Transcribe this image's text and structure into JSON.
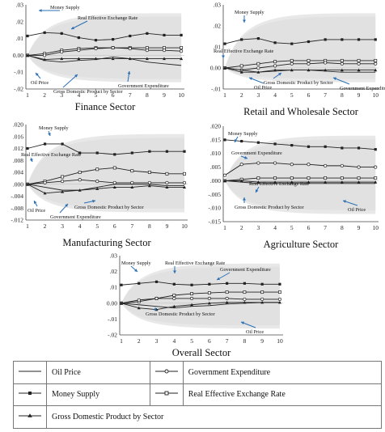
{
  "panels": [
    {
      "key": "finance",
      "title": "Finance Sector",
      "ytick_labels": [
        ".03",
        ".02",
        ".01",
        "0.00",
        "-.01",
        "-.02"
      ],
      "annotations": [
        "Money Supply",
        "Real Effective Exchange Rate",
        "Oil Price",
        "Gross Domestic Product by Sector",
        "Government Expenditure"
      ]
    },
    {
      "key": "retail",
      "title": "Retail and Wholesale Sector",
      "ytick_labels": [
        ".03",
        ".02",
        ".01",
        "0.00",
        "-.01"
      ],
      "annotations": [
        "Money Supply",
        "Real Effective Exchange Rate",
        "Oil Price",
        "Gross Domestic Product by Sector",
        "Government Expenditure"
      ]
    },
    {
      "key": "manufacturing",
      "title": "Manufacturing Sector",
      "ytick_labels": [
        ".020",
        ".016",
        ".012",
        ".008",
        ".004",
        ".000",
        "-.004",
        "-.008",
        "-.012"
      ],
      "annotations": [
        "Money Supply",
        "Real Effective Exchange Rate",
        "Oil Price",
        "Government Expenditure",
        "Gross Domestic Product by Sector"
      ]
    },
    {
      "key": "agriculture",
      "title": "Agriculture Sector",
      "ytick_labels": [
        ".020",
        ".015",
        ".010",
        ".005",
        ".000",
        "-.005",
        "-.010",
        "-.015"
      ],
      "annotations": [
        "Money Supply",
        "Government Expenditure",
        "Real Effective Exchange Rate",
        "Gross Domestic Product by Sector",
        "Oil Price"
      ]
    },
    {
      "key": "overall",
      "title": "Overall Sector",
      "ytick_labels": [
        ".03",
        ".02",
        ".01",
        "0.00",
        "-.01",
        "-.02"
      ],
      "annotations": [
        "Money Supply",
        "Real Effective Exchange Rate",
        "Government Expenditure",
        "Gross Domestic Product by Sector",
        "Oil Price"
      ]
    }
  ],
  "legend": {
    "oil_price": "Oil Price",
    "government_expenditure": "Government Expenditure",
    "money_supply": "Money Supply",
    "real_effective_exchange_rate": "Real Effective Exchange Rate",
    "gdp_by_sector": "Gross Domestic Product by Sector"
  },
  "colors": {
    "line": "#222222",
    "band": "#d9d9d9",
    "arrow": "#2a6fb5"
  },
  "chart_data": [
    {
      "type": "line",
      "title": "Finance Sector",
      "x": [
        1,
        2,
        3,
        4,
        5,
        6,
        7,
        8,
        9,
        10
      ],
      "ylim": [
        -0.02,
        0.03
      ],
      "series": [
        {
          "name": "Money Supply",
          "values": [
            0.0115,
            0.0135,
            0.013,
            0.0105,
            0.009,
            0.0095,
            0.0115,
            0.013,
            0.012,
            0.012
          ]
        },
        {
          "name": "Real Effective Exchange Rate",
          "values": [
            0.0,
            0.001,
            0.003,
            0.004,
            0.0045,
            0.0045,
            0.0045,
            0.0045,
            0.0045,
            0.0045
          ]
        },
        {
          "name": "Government Expenditure",
          "values": [
            0.0,
            0.0,
            0.002,
            0.003,
            0.004,
            0.0045,
            0.004,
            0.003,
            0.003,
            0.0025
          ]
        },
        {
          "name": "Gross Domestic Product by Sector",
          "values": [
            0.0,
            -0.0025,
            -0.002,
            -0.002,
            -0.002,
            -0.002,
            -0.002,
            -0.002,
            -0.002,
            -0.002
          ]
        },
        {
          "name": "Oil Price",
          "values": [
            0.0,
            -0.003,
            -0.004,
            -0.003,
            -0.0025,
            -0.001,
            -0.002,
            -0.004,
            -0.005,
            -0.006
          ]
        }
      ]
    },
    {
      "type": "line",
      "title": "Retail and Wholesale Sector",
      "x": [
        1,
        2,
        3,
        4,
        5,
        6,
        7,
        8,
        9,
        10
      ],
      "ylim": [
        -0.01,
        0.03
      ],
      "series": [
        {
          "name": "Money Supply",
          "values": [
            0.0115,
            0.0135,
            0.014,
            0.012,
            0.0115,
            0.0125,
            0.0135,
            0.0135,
            0.0135,
            0.0135
          ]
        },
        {
          "name": "Real Effective Exchange Rate",
          "values": [
            0.0,
            0.001,
            0.002,
            0.003,
            0.0035,
            0.0035,
            0.0035,
            0.0035,
            0.0035,
            0.0035
          ]
        },
        {
          "name": "Government Expenditure",
          "values": [
            0.0,
            -0.001,
            0.0,
            0.001,
            0.002,
            0.002,
            0.0025,
            0.002,
            0.002,
            0.002
          ]
        },
        {
          "name": "Gross Domestic Product by Sector",
          "values": [
            0.0,
            -0.002,
            -0.002,
            -0.001,
            -0.001,
            -0.001,
            -0.001,
            -0.001,
            -0.001,
            -0.001
          ]
        },
        {
          "name": "Oil Price",
          "values": [
            0.0,
            -0.001,
            -0.002,
            -0.0015,
            -0.001,
            -0.001,
            -0.0015,
            -0.002,
            -0.002,
            -0.002
          ]
        }
      ]
    },
    {
      "type": "line",
      "title": "Manufacturing Sector",
      "x": [
        1,
        2,
        3,
        4,
        5,
        6,
        7,
        8,
        9,
        10
      ],
      "ylim": [
        -0.012,
        0.02
      ],
      "series": [
        {
          "name": "Money Supply",
          "values": [
            0.012,
            0.0135,
            0.0135,
            0.0105,
            0.0105,
            0.01,
            0.0105,
            0.011,
            0.011,
            0.011
          ]
        },
        {
          "name": "Real Effective Exchange Rate",
          "values": [
            0.0,
            0.001,
            0.0025,
            0.004,
            0.005,
            0.0055,
            0.0045,
            0.004,
            0.0035,
            0.0035
          ]
        },
        {
          "name": "Government Expenditure",
          "values": [
            0.0,
            0.0005,
            0.001,
            0.0015,
            0.001,
            0.0005,
            0.0005,
            0.0005,
            0.0005,
            0.0005
          ]
        },
        {
          "name": "Gross Domestic Product by Sector",
          "values": [
            0.0,
            -0.003,
            -0.0025,
            -0.002,
            -0.0015,
            -0.001,
            -0.001,
            -0.0005,
            -0.001,
            -0.001
          ]
        },
        {
          "name": "Oil Price",
          "values": [
            0.0,
            -0.001,
            -0.002,
            -0.002,
            -0.001,
            0.0,
            0.0,
            0.0,
            -0.0005,
            -0.0005
          ]
        }
      ]
    },
    {
      "type": "line",
      "title": "Agriculture Sector",
      "x": [
        1,
        2,
        3,
        4,
        5,
        6,
        7,
        8,
        9,
        10
      ],
      "ylim": [
        -0.015,
        0.02
      ],
      "series": [
        {
          "name": "Money Supply",
          "values": [
            0.015,
            0.0145,
            0.014,
            0.0135,
            0.013,
            0.0125,
            0.0125,
            0.012,
            0.012,
            0.0115
          ]
        },
        {
          "name": "Government Expenditure",
          "values": [
            0.002,
            0.006,
            0.0065,
            0.0065,
            0.006,
            0.006,
            0.0055,
            0.0055,
            0.005,
            0.005
          ]
        },
        {
          "name": "Real Effective Exchange Rate",
          "values": [
            0.0,
            0.0005,
            0.001,
            0.001,
            0.001,
            0.001,
            0.001,
            0.001,
            0.001,
            0.001
          ]
        },
        {
          "name": "Gross Domestic Product by Sector",
          "values": [
            0.0,
            0.0,
            -0.0005,
            -0.0005,
            -0.0005,
            -0.0005,
            -0.0005,
            -0.0005,
            -0.0005,
            -0.0005
          ]
        },
        {
          "name": "Oil Price",
          "values": [
            0.0,
            -0.0005,
            -0.001,
            -0.001,
            -0.001,
            -0.001,
            -0.001,
            -0.001,
            -0.001,
            -0.001
          ]
        }
      ]
    },
    {
      "type": "line",
      "title": "Overall Sector",
      "x": [
        1,
        2,
        3,
        4,
        5,
        6,
        7,
        8,
        9,
        10
      ],
      "ylim": [
        -0.02,
        0.03
      ],
      "series": [
        {
          "name": "Money Supply",
          "values": [
            0.0115,
            0.0125,
            0.0135,
            0.012,
            0.0115,
            0.012,
            0.0125,
            0.0125,
            0.012,
            0.012
          ]
        },
        {
          "name": "Real Effective Exchange Rate",
          "values": [
            0.0,
            0.001,
            0.003,
            0.005,
            0.006,
            0.0065,
            0.007,
            0.007,
            0.007,
            0.007
          ]
        },
        {
          "name": "Government Expenditure",
          "values": [
            0.0,
            0.002,
            0.003,
            0.003,
            0.003,
            0.003,
            0.003,
            0.0025,
            0.0025,
            0.0025
          ]
        },
        {
          "name": "Gross Domestic Product by Sector",
          "values": [
            0.0,
            -0.003,
            -0.004,
            -0.002,
            -0.001,
            0.0,
            0.0005,
            0.0005,
            0.0005,
            0.0005
          ]
        },
        {
          "name": "Oil Price",
          "values": [
            0.0,
            -0.001,
            -0.002,
            -0.003,
            -0.002,
            -0.0015,
            -0.0005,
            0.0,
            0.0005,
            0.0005
          ]
        }
      ]
    }
  ]
}
